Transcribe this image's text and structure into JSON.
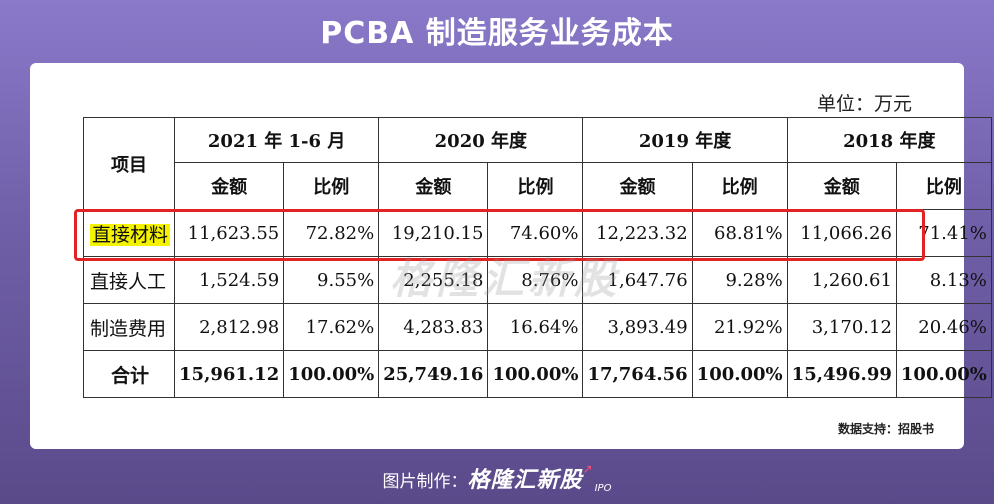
{
  "title": "PCBA 制造服务业务成本",
  "unit": "单位：万元",
  "table": {
    "item_header": "项目",
    "periods": [
      "2021 年 1-6 月",
      "2020 年度",
      "2019 年度",
      "2018 年度"
    ],
    "sub_headers": [
      "金额",
      "比例"
    ],
    "rows": [
      {
        "item": "直接材料",
        "values": [
          "11,623.55",
          "72.82%",
          "19,210.15",
          "74.60%",
          "12,223.32",
          "68.81%",
          "11,066.26",
          "71.41%"
        ]
      },
      {
        "item": "直接人工",
        "values": [
          "1,524.59",
          "9.55%",
          "2,255.18",
          "8.76%",
          "1,647.76",
          "9.28%",
          "1,260.61",
          "8.13%"
        ]
      },
      {
        "item": "制造费用",
        "values": [
          "2,812.98",
          "17.62%",
          "4,283.83",
          "16.64%",
          "3,893.49",
          "21.92%",
          "3,170.12",
          "20.46%"
        ]
      },
      {
        "item": "合计",
        "values": [
          "15,961.12",
          "100.00%",
          "25,749.16",
          "100.00%",
          "17,764.56",
          "100.00%",
          "15,496.99",
          "100.00%"
        ]
      }
    ]
  },
  "watermark": "格隆汇新股",
  "source": "数据支持：招股书",
  "footer": {
    "label": "图片制作：",
    "brand": "格隆汇新股",
    "brand_sub": "IPO"
  },
  "colors": {
    "highlight_box": "#e22323",
    "text_highlight": "#f5f200"
  }
}
